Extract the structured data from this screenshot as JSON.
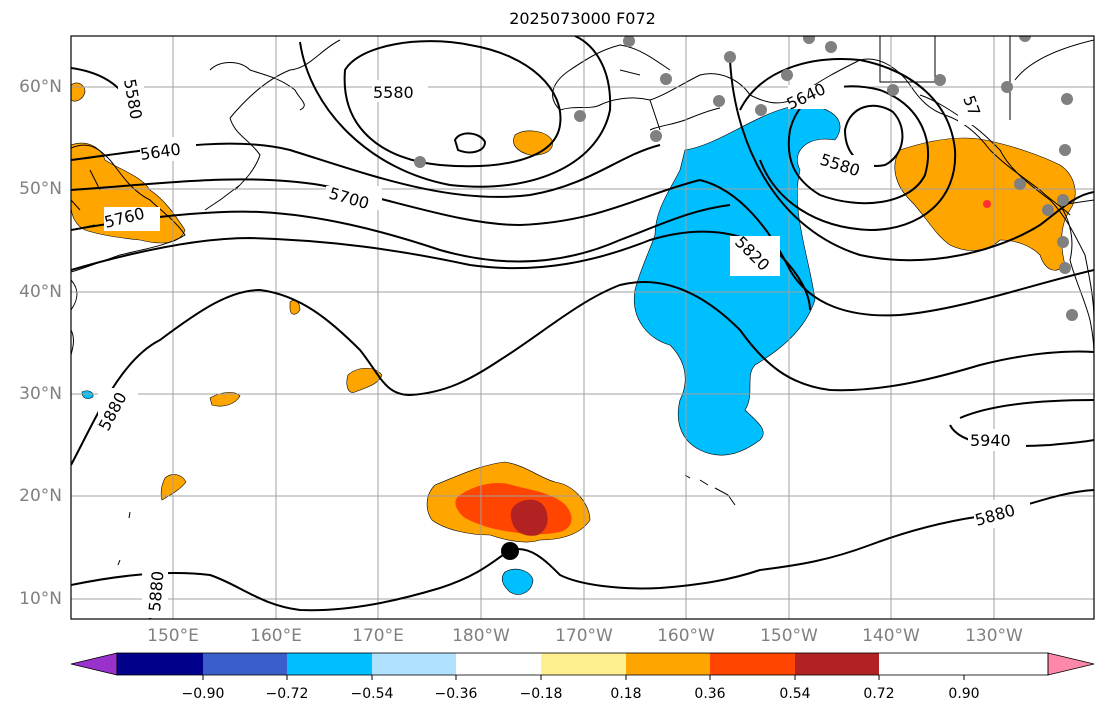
{
  "title": "2025073000 F072",
  "lat_labels": [
    "60°N",
    "50°N",
    "40°N",
    "30°N",
    "20°N",
    "10°N"
  ],
  "lon_labels": [
    "150°E",
    "160°E",
    "170°E",
    "180°W",
    "170°W",
    "160°W",
    "150°W",
    "140°W",
    "130°W"
  ],
  "colorbar": {
    "ticks": [
      "−0.90",
      "−0.72",
      "−0.54",
      "−0.36",
      "−0.18",
      "0.18",
      "0.36",
      "0.54",
      "0.72",
      "0.90"
    ],
    "colors": [
      "#9932cc",
      "#00008b",
      "#3a5fcd",
      "#00bfff",
      "#b0e2ff",
      "#ffffff",
      "#fff08f",
      "#ffa500",
      "#ff4500",
      "#b22222",
      "#ff88aa"
    ]
  },
  "contour_labels": [
    "5580",
    "5580",
    "5640",
    "5700",
    "5760",
    "5640",
    "5580",
    "5820",
    "5880",
    "5880",
    "5940",
    "5880",
    "57"
  ],
  "colors": {
    "orange": "#ffa500",
    "blue": "#00bfff",
    "red": "#ff4500",
    "darkred": "#b22222",
    "marker": "#808080",
    "grid": "#a0a0a0"
  }
}
